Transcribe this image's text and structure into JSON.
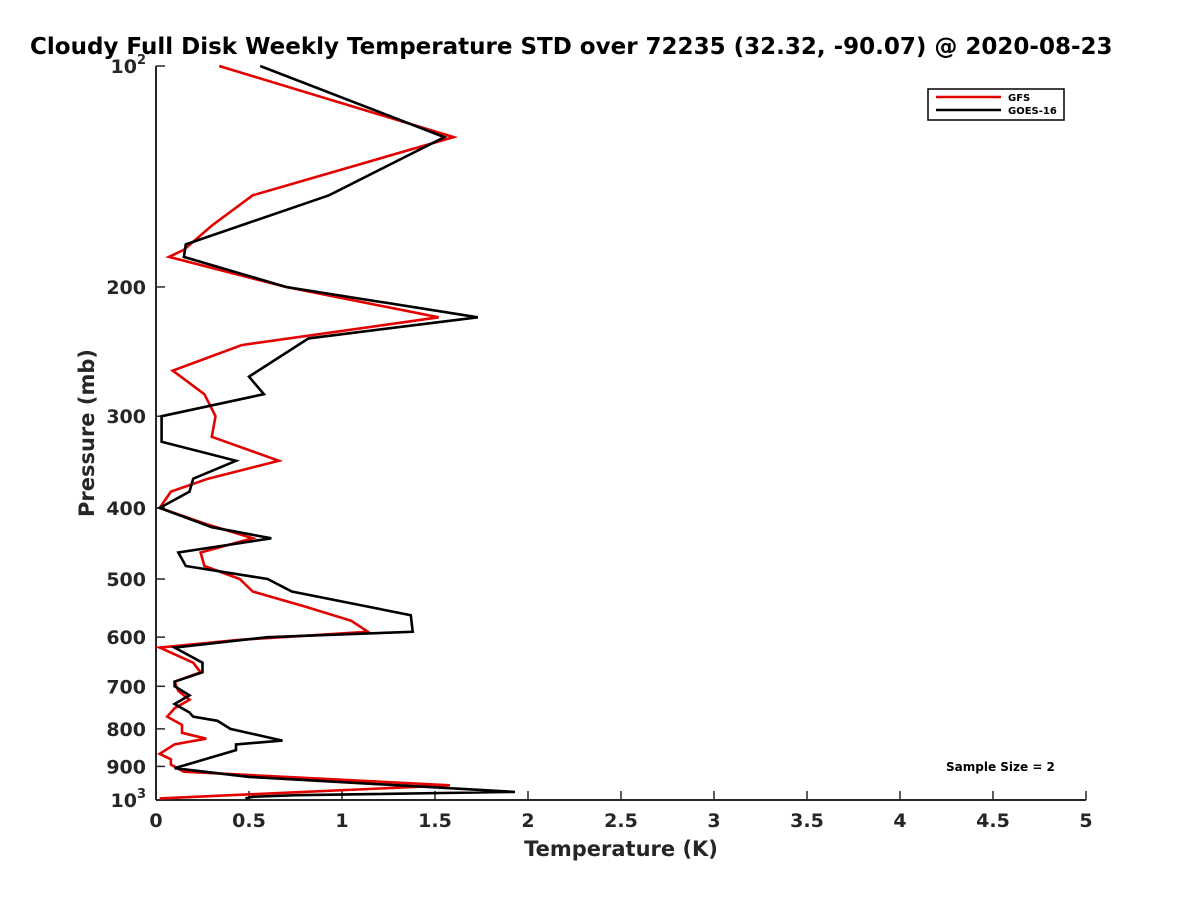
{
  "chart_data": {
    "type": "line",
    "title": "Cloudy Full Disk Weekly Temperature STD over 72235 (32.32, -90.07) @ 2020-08-23",
    "xlabel": "Temperature (K)",
    "ylabel": "Pressure (mb)",
    "xlim": [
      0,
      5
    ],
    "ylim": [
      1000,
      100
    ],
    "yscale": "log",
    "y_reversed": true,
    "xticks": [
      "0",
      "0.5",
      "1",
      "1.5",
      "2",
      "2.5",
      "3",
      "3.5",
      "4",
      "4.5",
      "5"
    ],
    "yticks": [
      {
        "value": 100,
        "base": "10",
        "exp": "2"
      },
      {
        "value": 200,
        "label": "200"
      },
      {
        "value": 300,
        "label": "300"
      },
      {
        "value": 400,
        "label": "400"
      },
      {
        "value": 500,
        "label": "500"
      },
      {
        "value": 600,
        "label": "600"
      },
      {
        "value": 700,
        "label": "700"
      },
      {
        "value": 800,
        "label": "800"
      },
      {
        "value": 900,
        "label": "900"
      },
      {
        "value": 1000,
        "base": "10",
        "exp": "3"
      }
    ],
    "legend_position": "top-right",
    "annotation": "Sample Size = 2",
    "grid": false,
    "series": [
      {
        "name": "GFS",
        "color": "#e30000",
        "points": [
          [
            0.34,
            100
          ],
          [
            1.6,
            125
          ],
          [
            0.52,
            150
          ],
          [
            0.3,
            165
          ],
          [
            0.15,
            178
          ],
          [
            0.07,
            182
          ],
          [
            0.7,
            200
          ],
          [
            1.52,
            220
          ],
          [
            0.46,
            240
          ],
          [
            0.09,
            260
          ],
          [
            0.26,
            280
          ],
          [
            0.32,
            300
          ],
          [
            0.3,
            320
          ],
          [
            0.66,
            345
          ],
          [
            0.28,
            365
          ],
          [
            0.08,
            380
          ],
          [
            0.02,
            400
          ],
          [
            0.26,
            420
          ],
          [
            0.52,
            440
          ],
          [
            0.24,
            460
          ],
          [
            0.26,
            480
          ],
          [
            0.45,
            500
          ],
          [
            0.52,
            520
          ],
          [
            0.8,
            545
          ],
          [
            1.05,
            570
          ],
          [
            1.14,
            590
          ],
          [
            0.45,
            605
          ],
          [
            0.02,
            620
          ],
          [
            0.2,
            650
          ],
          [
            0.24,
            670
          ],
          [
            0.1,
            690
          ],
          [
            0.12,
            710
          ],
          [
            0.18,
            730
          ],
          [
            0.1,
            750
          ],
          [
            0.06,
            770
          ],
          [
            0.14,
            790
          ],
          [
            0.14,
            810
          ],
          [
            0.27,
            825
          ],
          [
            0.1,
            840
          ],
          [
            0.02,
            865
          ],
          [
            0.08,
            880
          ],
          [
            0.08,
            895
          ],
          [
            0.15,
            915
          ],
          [
            1.58,
            955
          ],
          [
            0.02,
            995
          ]
        ]
      },
      {
        "name": "GOES-16",
        "color": "#000000",
        "points": [
          [
            0.56,
            100
          ],
          [
            1.55,
            125
          ],
          [
            0.93,
            150
          ],
          [
            0.16,
            175
          ],
          [
            0.15,
            182
          ],
          [
            0.7,
            200
          ],
          [
            1.73,
            220
          ],
          [
            0.82,
            235
          ],
          [
            0.5,
            265
          ],
          [
            0.58,
            280
          ],
          [
            0.03,
            300
          ],
          [
            0.03,
            325
          ],
          [
            0.43,
            345
          ],
          [
            0.2,
            365
          ],
          [
            0.18,
            380
          ],
          [
            0.02,
            400
          ],
          [
            0.3,
            425
          ],
          [
            0.62,
            440
          ],
          [
            0.12,
            460
          ],
          [
            0.16,
            480
          ],
          [
            0.6,
            500
          ],
          [
            0.73,
            520
          ],
          [
            1.37,
            560
          ],
          [
            1.38,
            590
          ],
          [
            0.6,
            600
          ],
          [
            0.1,
            620
          ],
          [
            0.25,
            650
          ],
          [
            0.25,
            670
          ],
          [
            0.1,
            690
          ],
          [
            0.1,
            700
          ],
          [
            0.18,
            720
          ],
          [
            0.1,
            740
          ],
          [
            0.18,
            760
          ],
          [
            0.2,
            770
          ],
          [
            0.33,
            780
          ],
          [
            0.4,
            800
          ],
          [
            0.68,
            830
          ],
          [
            0.43,
            840
          ],
          [
            0.43,
            855
          ],
          [
            0.1,
            905
          ],
          [
            0.5,
            930
          ],
          [
            1.93,
            975
          ],
          [
            0.75,
            985
          ],
          [
            0.52,
            990
          ],
          [
            0.48,
            995
          ]
        ]
      }
    ]
  }
}
